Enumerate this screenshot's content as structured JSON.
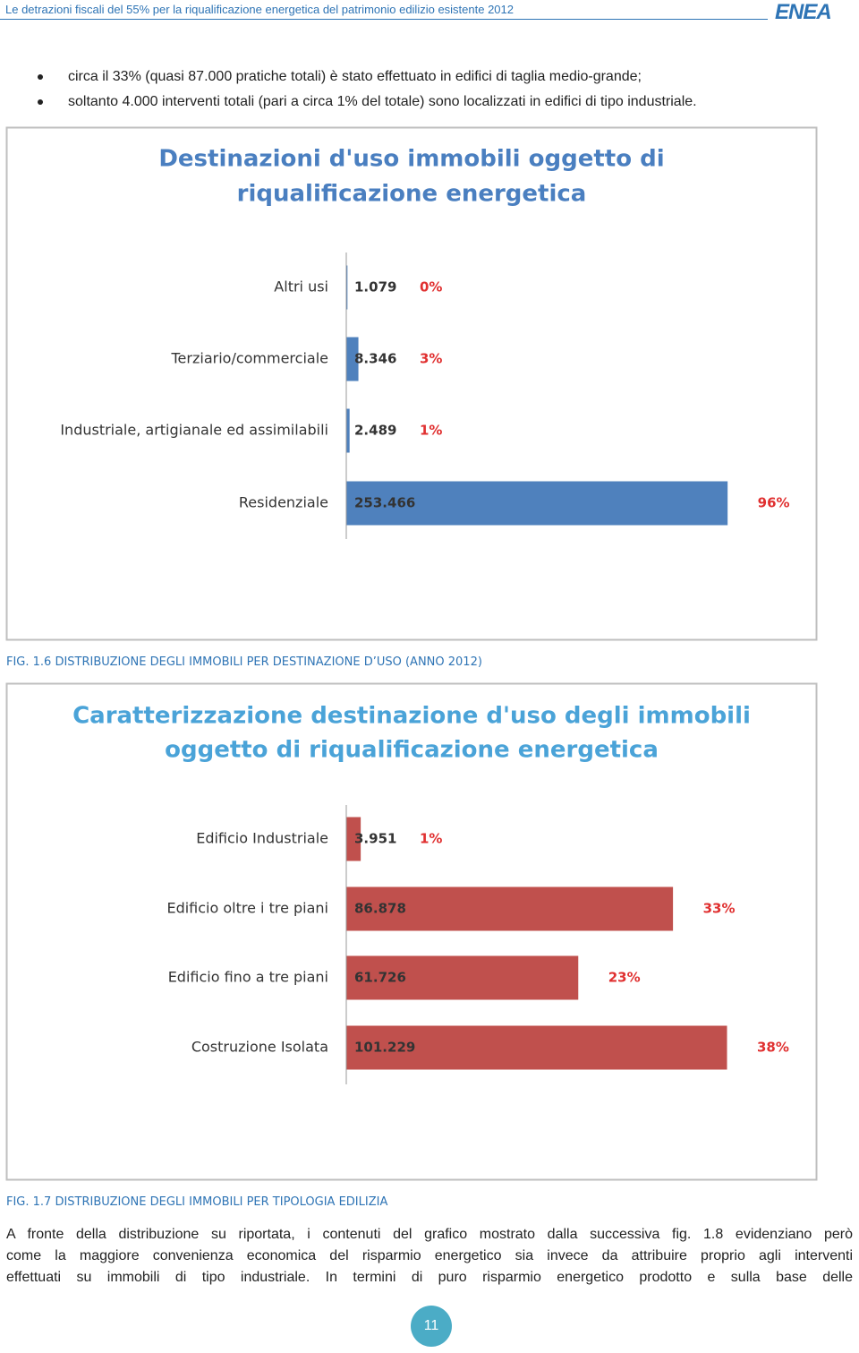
{
  "header": {
    "title": "Le detrazioni fiscali del 55% per la riqualificazione energetica del patrimonio edilizio esistente  2012",
    "logo": "ENEA"
  },
  "bullets": [
    "circa il 33% (quasi 87.000 pratiche totali) è stato effettuato in edifici di taglia medio-grande;",
    "soltanto 4.000 interventi totali (pari a circa 1% del totale) sono localizzati in edifici di tipo industriale."
  ],
  "chart_data": [
    {
      "type": "bar",
      "orientation": "horizontal",
      "title": [
        "Destinazioni d'uso immobili oggetto di",
        "riqualificazione energetica"
      ],
      "categories": [
        "Altri usi",
        "Terziario/commerciale",
        "Industriale, artigianale ed assimilabili",
        "Residenziale"
      ],
      "values": [
        1079,
        8346,
        2489,
        253466
      ],
      "value_labels": [
        "1.079",
        "8.346",
        "2.489",
        "253.466"
      ],
      "percents": [
        0,
        3,
        1,
        96
      ],
      "percent_labels": [
        "0%",
        "3%",
        "1%",
        "96%"
      ],
      "color": "#4f81bd",
      "title_color": "#4a7fc0",
      "xlim": [
        0,
        300000
      ]
    },
    {
      "type": "bar",
      "orientation": "horizontal",
      "title": [
        "Caratterizzazione destinazione d'uso degli immobili",
        "oggetto di riqualificazione energetica"
      ],
      "categories": [
        "Edificio Industriale",
        "Edificio oltre i tre piani",
        "Edificio fino a tre piani",
        "Costruzione Isolata"
      ],
      "values": [
        3951,
        86878,
        61726,
        101229
      ],
      "value_labels": [
        "3.951",
        "86.878",
        "61.726",
        "101.229"
      ],
      "percents": [
        1,
        33,
        23,
        38
      ],
      "percent_labels": [
        "1%",
        "33%",
        "23%",
        "38%"
      ],
      "color": "#c0504d",
      "title_color": "#4aa3d8",
      "xlim": [
        0,
        120000
      ]
    }
  ],
  "captions": [
    "FIG. 1.6 DISTRIBUZIONE DEGLI IMMOBILI PER DESTINAZIONE D’USO (ANNO 2012)",
    "FIG. 1.7 DISTRIBUZIONE DEGLI IMMOBILI PER TIPOLOGIA EDILIZIA"
  ],
  "paragraph": [
    "A fronte della distribuzione su riportata, i contenuti del grafico mostrato dalla successiva fig. 1.8 evidenziano però",
    "come la maggiore convenienza economica del risparmio energetico sia invece da attribuire proprio agli interventi",
    "effettuati su immobili di tipo industriale. In termini di puro risparmio energetico prodotto e sulla base delle"
  ],
  "page_number": "11"
}
